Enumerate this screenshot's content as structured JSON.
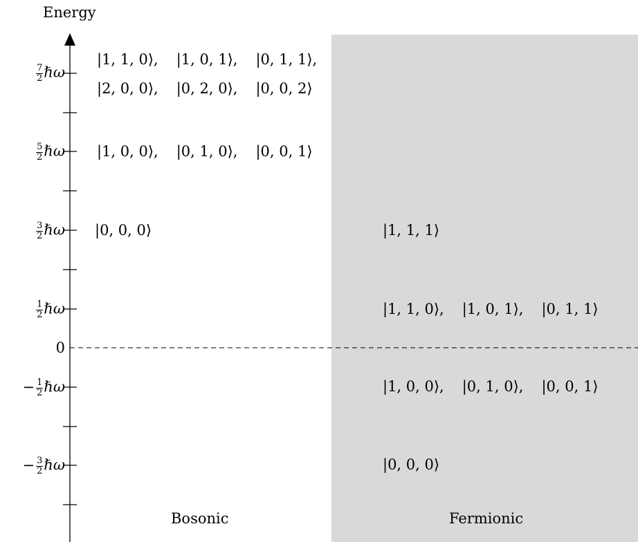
{
  "axis": {
    "title": "Energy"
  },
  "ticks": [
    {
      "id": "t-7-2",
      "sign": "",
      "num": "7",
      "den": "2",
      "suffix": "ℏω"
    },
    {
      "id": "t-5-2",
      "sign": "",
      "num": "5",
      "den": "2",
      "suffix": "ℏω"
    },
    {
      "id": "t-3-2",
      "sign": "",
      "num": "3",
      "den": "2",
      "suffix": "ℏω"
    },
    {
      "id": "t-1-2",
      "sign": "",
      "num": "1",
      "den": "2",
      "suffix": "ℏω"
    },
    {
      "id": "t-0",
      "plain": "0"
    },
    {
      "id": "t-m1-2",
      "sign": "−",
      "num": "1",
      "den": "2",
      "suffix": "ℏω"
    },
    {
      "id": "t-m3-2",
      "sign": "−",
      "num": "3",
      "den": "2",
      "suffix": "ℏω"
    }
  ],
  "bosonic": {
    "label": "Bosonic",
    "rows": [
      [
        "|1, 1, 0⟩,",
        "|1, 0, 1⟩,",
        "|0, 1, 1⟩,"
      ],
      [
        "|2, 0, 0⟩,",
        "|0, 2, 0⟩,",
        "|0, 0, 2⟩"
      ],
      [
        "|1, 0, 0⟩,",
        "|0, 1, 0⟩,",
        "|0, 0, 1⟩"
      ],
      [
        "|0, 0, 0⟩"
      ]
    ]
  },
  "fermionic": {
    "label": "Fermionic",
    "rows": [
      [
        "|1, 1, 1⟩"
      ],
      [
        "|1, 1, 0⟩,",
        "|1, 0, 1⟩,",
        "|0, 1, 1⟩"
      ],
      [
        "|1, 0, 0⟩,",
        "|0, 1, 0⟩,",
        "|0, 0, 1⟩"
      ],
      [
        "|0, 0, 0⟩"
      ]
    ]
  }
}
